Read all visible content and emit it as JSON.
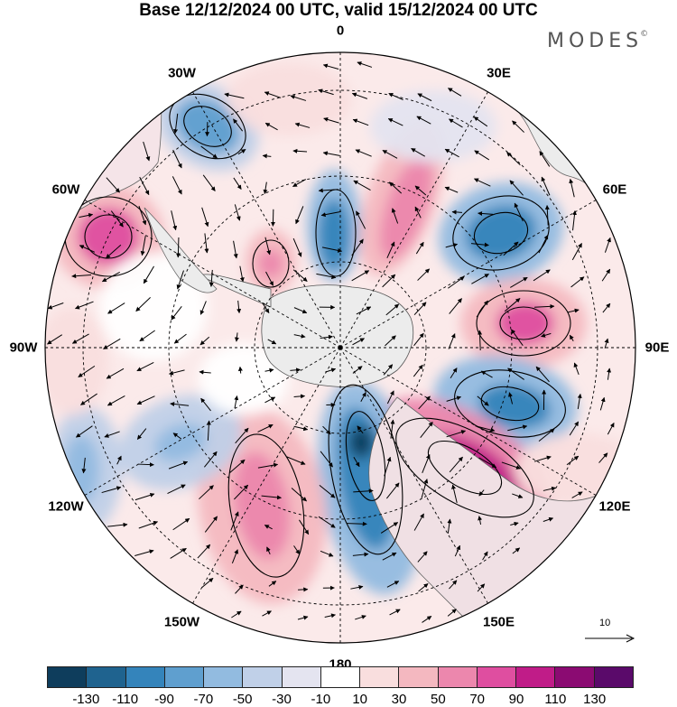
{
  "title": "Base 12/12/2024 00 UTC, valid 15/12/2024 00 UTC",
  "brand": "MODES",
  "brand_mark": "©",
  "longitude_labels": [
    "0",
    "30E",
    "60E",
    "90E",
    "120E",
    "150E",
    "180",
    "150W",
    "120W",
    "90W",
    "60W",
    "30W"
  ],
  "reference_vector_label": "10",
  "colorbar": {
    "colors": [
      "#0e3d5c",
      "#1f638f",
      "#3484bb",
      "#5f9fcf",
      "#92bbe0",
      "#c0d0e8",
      "#e4e4f0",
      "#ffffff",
      "#f9dede",
      "#f4b8c0",
      "#ec87ad",
      "#df4ea0",
      "#c01c88",
      "#8b0b72",
      "#5a0a6a"
    ],
    "tick_labels": [
      "-130",
      "-110",
      "-90",
      "-70",
      "-50",
      "-30",
      "-10",
      "10",
      "30",
      "50",
      "70",
      "90",
      "110",
      "130"
    ]
  },
  "map": {
    "projection": "south polar stereographic",
    "contours": [
      {
        "sign": "neg",
        "level": -70
      },
      {
        "sign": "neg",
        "level": -90
      },
      {
        "sign": "pos",
        "level": 90
      },
      {
        "sign": "pos",
        "level": 110
      }
    ]
  }
}
